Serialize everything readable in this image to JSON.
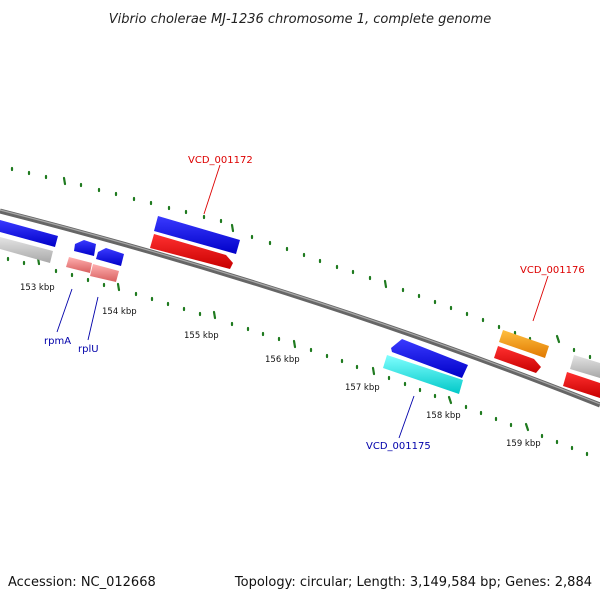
{
  "title": "Vibrio cholerae MJ-1236 chromosome 1, complete genome",
  "footer": {
    "accession": "Accession: NC_012668",
    "summary": "Topology: circular; Length: 3,149,584 bp; Genes: 2,884"
  },
  "colors": {
    "backbone": "#7a7a7a",
    "tick": "#1f7a1f",
    "blue": "#0000ee",
    "red": "#ee0000",
    "gray": "#c8c8c8",
    "pink": "#f08080",
    "cyan": "#00eeee",
    "orange": "#ff9900",
    "label_blue": "#0000aa",
    "label_red": "#dd0000"
  },
  "ticks": [
    {
      "id": "153",
      "label": "153 kbp"
    },
    {
      "id": "154",
      "label": "154 kbp"
    },
    {
      "id": "155",
      "label": "155 kbp"
    },
    {
      "id": "156",
      "label": "156 kbp"
    },
    {
      "id": "157",
      "label": "157 kbp"
    },
    {
      "id": "158",
      "label": "158 kbp"
    },
    {
      "id": "159",
      "label": "159 kbp"
    }
  ],
  "gene_labels": [
    {
      "id": "vcd_001172",
      "text": "VCD_001172",
      "color": "red"
    },
    {
      "id": "vcd_001176",
      "text": "VCD_001176",
      "color": "red"
    },
    {
      "id": "rpma",
      "text": "rpmA",
      "color": "blue"
    },
    {
      "id": "rplu",
      "text": "rplU",
      "color": "blue"
    },
    {
      "id": "vcd_001175",
      "text": "VCD_001175",
      "color": "blue"
    }
  ]
}
